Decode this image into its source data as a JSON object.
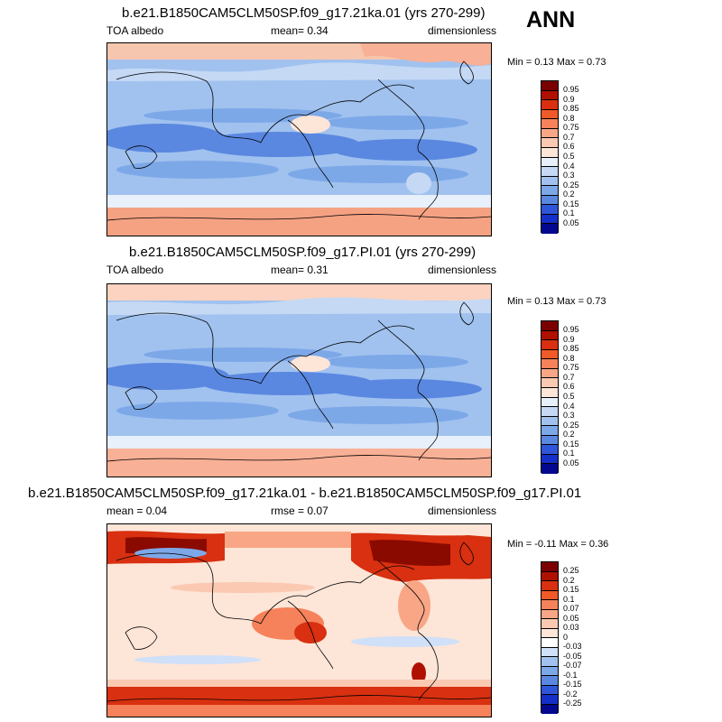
{
  "season": "ANN",
  "panels": [
    {
      "title": "b.e21.B1850CAM5CLM50SP.f09_g17.21ka.01 (yrs 270-299)",
      "variable": "TOA albedo",
      "stat": "mean=   0.34",
      "units": "dimensionless",
      "minmax": "Min =   0.13 Max =   0.73",
      "levels": [
        "0.95",
        "0.9",
        "0.85",
        "0.8",
        "0.75",
        "0.7",
        "0.6",
        "0.5",
        "0.4",
        "0.3",
        "0.25",
        "0.2",
        "0.15",
        "0.1",
        "0.05"
      ],
      "colors": [
        "#7a0000",
        "#b01000",
        "#d83010",
        "#ef5a28",
        "#f5825a",
        "#f8a685",
        "#fbc9b2",
        "#fde5d8",
        "#e8f0fb",
        "#c5d9f5",
        "#a1c2ef",
        "#7da8e8",
        "#5a88e0",
        "#2f55d8",
        "#1430c8",
        "#03088e"
      ]
    },
    {
      "title": "b.e21.B1850CAM5CLM50SP.f09_g17.PI.01 (yrs 270-299)",
      "variable": "TOA albedo",
      "stat": "mean=   0.31",
      "units": "dimensionless",
      "minmax": "Min =   0.13 Max =   0.73",
      "levels": [
        "0.95",
        "0.9",
        "0.85",
        "0.8",
        "0.75",
        "0.7",
        "0.6",
        "0.5",
        "0.4",
        "0.3",
        "0.25",
        "0.2",
        "0.15",
        "0.1",
        "0.05"
      ],
      "colors": [
        "#7a0000",
        "#b01000",
        "#d83010",
        "#ef5a28",
        "#f5825a",
        "#f8a685",
        "#fbc9b2",
        "#fde5d8",
        "#e8f0fb",
        "#c5d9f5",
        "#a1c2ef",
        "#7da8e8",
        "#5a88e0",
        "#2f55d8",
        "#1430c8",
        "#03088e"
      ]
    },
    {
      "title": "b.e21.B1850CAM5CLM50SP.f09_g17.21ka.01 - b.e21.B1850CAM5CLM50SP.f09_g17.PI.01",
      "variable": "mean =   0.04",
      "stat": "rmse =   0.07",
      "units": "dimensionless",
      "minmax": "Min =  -0.11 Max =   0.36",
      "levels": [
        "0.25",
        "0.2",
        "0.15",
        "0.1",
        "0.07",
        "0.05",
        "0.03",
        "0",
        "-0.03",
        "-0.05",
        "-0.07",
        "-0.1",
        "-0.15",
        "-0.2",
        "-0.25"
      ],
      "colors": [
        "#7a0000",
        "#b01000",
        "#d83010",
        "#ef5a28",
        "#f5825a",
        "#f8a685",
        "#fbc9b2",
        "#fde5d8",
        "#ffffff",
        "#cfe0f8",
        "#a1c2ef",
        "#7da8e8",
        "#5a88e0",
        "#2f55d8",
        "#1430c8",
        "#03088e"
      ]
    }
  ],
  "chart_data": [
    {
      "type": "heatmap",
      "title": "b.e21.B1850CAM5CLM50SP.f09_g17.21ka.01 (yrs 270-299)",
      "variable": "TOA albedo",
      "units": "dimensionless",
      "mean": 0.34,
      "min": 0.13,
      "max": 0.73,
      "contour_levels": [
        0.05,
        0.1,
        0.15,
        0.2,
        0.25,
        0.3,
        0.4,
        0.5,
        0.6,
        0.7,
        0.75,
        0.8,
        0.85,
        0.9,
        0.95
      ],
      "projection": "cylindrical equidistant, global",
      "grid": false
    },
    {
      "type": "heatmap",
      "title": "b.e21.B1850CAM5CLM50SP.f09_g17.PI.01 (yrs 270-299)",
      "variable": "TOA albedo",
      "units": "dimensionless",
      "mean": 0.31,
      "min": 0.13,
      "max": 0.73,
      "contour_levels": [
        0.05,
        0.1,
        0.15,
        0.2,
        0.25,
        0.3,
        0.4,
        0.5,
        0.6,
        0.7,
        0.75,
        0.8,
        0.85,
        0.9,
        0.95
      ],
      "projection": "cylindrical equidistant, global",
      "grid": false
    },
    {
      "type": "heatmap",
      "title": "b.e21.B1850CAM5CLM50SP.f09_g17.21ka.01 - b.e21.B1850CAM5CLM50SP.f09_g17.PI.01",
      "units": "dimensionless",
      "mean": 0.04,
      "rmse": 0.07,
      "min": -0.11,
      "max": 0.36,
      "contour_levels": [
        -0.25,
        -0.2,
        -0.15,
        -0.1,
        -0.07,
        -0.05,
        -0.03,
        0,
        0.03,
        0.05,
        0.07,
        0.1,
        0.15,
        0.2,
        0.25
      ],
      "projection": "cylindrical equidistant, global",
      "grid": false
    }
  ]
}
